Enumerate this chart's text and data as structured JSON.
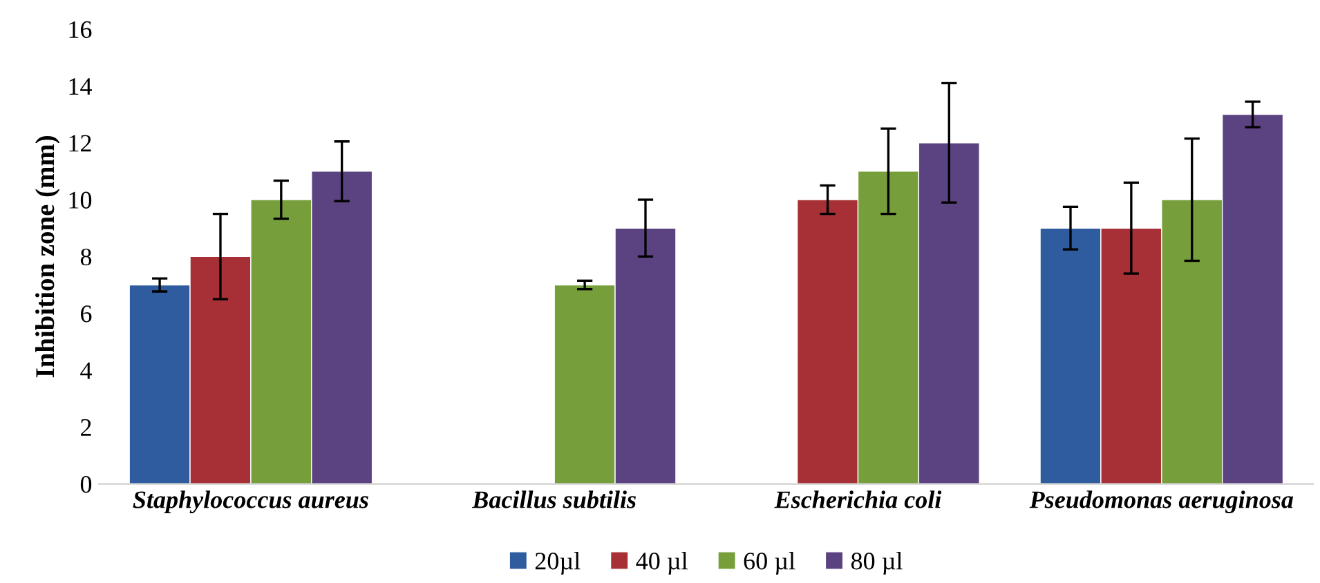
{
  "chart_data": {
    "type": "bar",
    "ylabel": "Inhibition zone (mm)",
    "categories": [
      "Staphylococcus aureus",
      "Bacillus subtilis",
      "Escherichia coli",
      "Pseudomonas aeruginosa"
    ],
    "series": [
      {
        "name": "20µl",
        "color": "#2e5c9e",
        "values": [
          7,
          null,
          null,
          9
        ],
        "errors": [
          0.23,
          null,
          null,
          0.75
        ]
      },
      {
        "name": "40 µl",
        "color": "#a63035",
        "values": [
          8,
          null,
          10,
          9
        ],
        "errors": [
          1.5,
          null,
          0.5,
          1.6
        ]
      },
      {
        "name": "60 µl",
        "color": "#769e3a",
        "values": [
          10,
          7,
          11,
          10
        ],
        "errors": [
          0.67,
          0.15,
          1.5,
          2.15
        ]
      },
      {
        "name": "80 µl",
        "color": "#5b4280",
        "values": [
          11,
          9,
          12,
          13
        ],
        "errors": [
          1.05,
          1.0,
          2.1,
          0.45
        ]
      }
    ],
    "ylim": [
      0,
      16
    ],
    "yticks": [
      0,
      2,
      4,
      6,
      8,
      10,
      12,
      14,
      16
    ],
    "grid": false,
    "legend": "bottom"
  }
}
